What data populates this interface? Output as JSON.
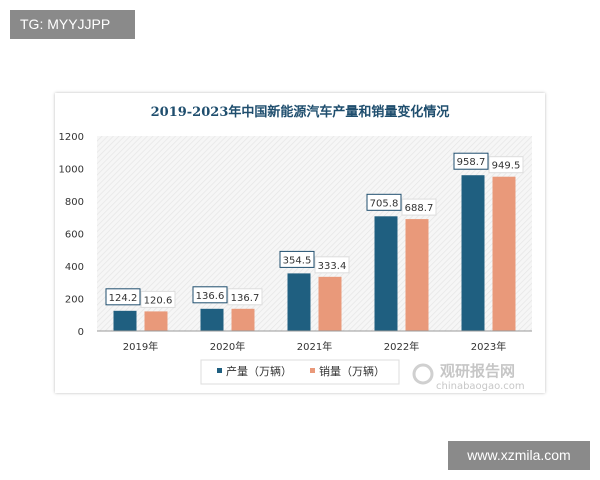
{
  "watermark_top_left": "TG: MYYJJPP",
  "watermark_bottom_right": "www.xzmila.com",
  "logo": {
    "name": "观研报告网",
    "url_text": "chinabaogao.com"
  },
  "chart_data": {
    "type": "bar",
    "title": "2019-2023年中国新能源汽车产量和销量变化情况",
    "categories": [
      "2019年",
      "2020年",
      "2021年",
      "2022年",
      "2023年"
    ],
    "series": [
      {
        "name": "产量（万辆）",
        "values": [
          124.2,
          136.6,
          354.5,
          705.8,
          958.7
        ],
        "color": "#1f5f80"
      },
      {
        "name": "销量（万辆）",
        "values": [
          120.6,
          136.7,
          333.4,
          688.7,
          949.5
        ],
        "color": "#e9997a"
      }
    ],
    "ylim": [
      0,
      1200
    ],
    "yticks": [
      0,
      200,
      400,
      600,
      800,
      1000,
      1200
    ],
    "grid": false,
    "legend": "bottom"
  }
}
